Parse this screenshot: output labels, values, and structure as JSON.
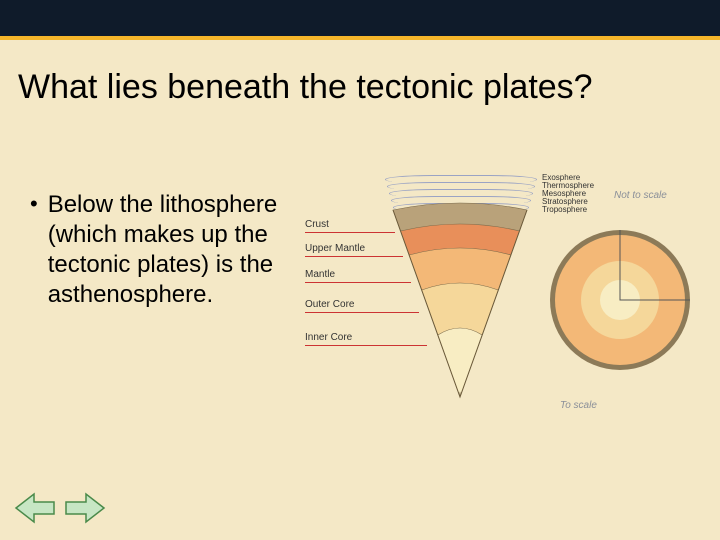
{
  "slide": {
    "background_color": "#f4e8c6",
    "topbar_color": "#0f1b2a",
    "rule_color": "#f5b62a",
    "title": "What lies beneath the tectonic plates?",
    "title_fontsize": 34,
    "bullet": "Below the lithosphere (which makes up the tectonic plates) is the asthenosphere.",
    "bullet_fontsize": 24
  },
  "nav": {
    "prev_fill": "#c7e6c4",
    "prev_stroke": "#4a8a4a",
    "next_fill": "#c7e6c4",
    "next_stroke": "#4a8a4a"
  },
  "diagram": {
    "type": "infographic",
    "notes": {
      "not_to_scale": "Not to scale",
      "to_scale": "To scale"
    },
    "wedge_layers": [
      {
        "name": "Crust",
        "fill": "#b9a27a",
        "label": "Crust"
      },
      {
        "name": "Upper Mantle",
        "fill": "#e88f5a",
        "label": "Upper Mantle"
      },
      {
        "name": "Mantle",
        "fill": "#f3b877",
        "label": "Mantle"
      },
      {
        "name": "Outer Core",
        "fill": "#f5d79a",
        "label": "Outer Core"
      },
      {
        "name": "Inner Core",
        "fill": "#f8edc3",
        "label": "Inner Core"
      }
    ],
    "leader_color": "#cc3333",
    "label_fontsize": 10,
    "atmosphere_layers": [
      {
        "label": "Exosphere"
      },
      {
        "label": "Thermosphere"
      },
      {
        "label": "Mesosphere"
      },
      {
        "label": "Stratosphere"
      },
      {
        "label": "Troposphere"
      }
    ],
    "atmo_arc_color": "#9aa3c4",
    "globe": {
      "rings": [
        {
          "name": "crust",
          "diameter": 140,
          "fill": "#8c7a58"
        },
        {
          "name": "mantle",
          "diameter": 130,
          "fill": "#f3b877"
        },
        {
          "name": "outer_core",
          "diameter": 78,
          "fill": "#f5d79a"
        },
        {
          "name": "inner_core",
          "diameter": 40,
          "fill": "#f8edc3"
        }
      ],
      "cut_line_color": "#555"
    }
  }
}
